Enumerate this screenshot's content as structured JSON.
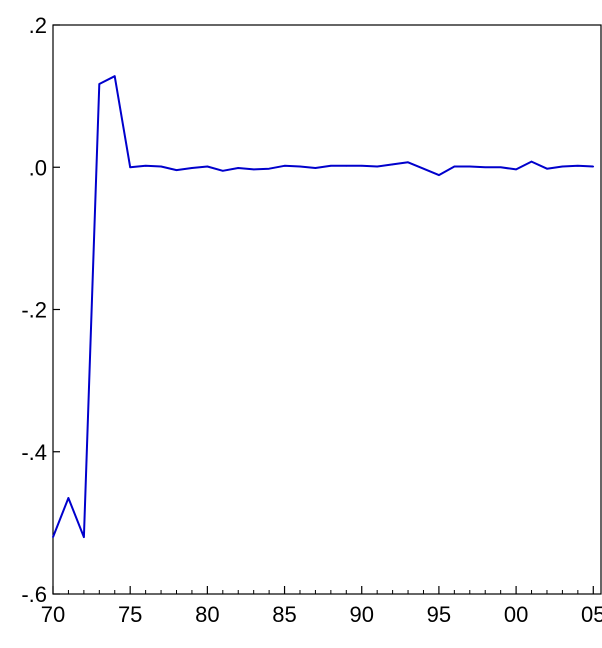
{
  "chart_data": {
    "type": "line",
    "title": "",
    "xlabel": "",
    "ylabel": "",
    "grid": false,
    "xlim": [
      1970,
      2005.5
    ],
    "ylim": [
      -0.6,
      0.2
    ],
    "x_ticks": [
      {
        "value": 1970,
        "label": "70"
      },
      {
        "value": 1975,
        "label": "75"
      },
      {
        "value": 1980,
        "label": "80"
      },
      {
        "value": 1985,
        "label": "85"
      },
      {
        "value": 1990,
        "label": "90"
      },
      {
        "value": 1995,
        "label": "95"
      },
      {
        "value": 2000,
        "label": "00"
      },
      {
        "value": 2005,
        "label": "05"
      }
    ],
    "y_ticks": [
      {
        "value": 0.2,
        "label": ".2"
      },
      {
        "value": 0.0,
        "label": ".0"
      },
      {
        "value": -0.2,
        "label": "-.2"
      },
      {
        "value": -0.4,
        "label": "-.4"
      },
      {
        "value": -0.6,
        "label": "-.6"
      }
    ],
    "series": [
      {
        "color": "#0000cc",
        "x": [
          1970,
          1971,
          1972,
          1973,
          1974,
          1975,
          1976,
          1977,
          1978,
          1979,
          1980,
          1981,
          1982,
          1983,
          1984,
          1985,
          1986,
          1987,
          1988,
          1989,
          1990,
          1991,
          1992,
          1993,
          1994,
          1995,
          1996,
          1997,
          1998,
          1999,
          2000,
          2001,
          2002,
          2003,
          2004,
          2005
        ],
        "y": [
          -0.52,
          -0.465,
          -0.52,
          0.117,
          0.128,
          0.0,
          0.002,
          0.001,
          -0.004,
          -0.001,
          0.001,
          -0.005,
          -0.001,
          -0.003,
          -0.002,
          0.002,
          0.001,
          -0.001,
          0.002,
          0.002,
          0.002,
          0.001,
          0.004,
          0.007,
          -0.002,
          -0.011,
          0.001,
          0.001,
          0.0,
          0.0,
          -0.003,
          0.008,
          -0.002,
          0.001,
          0.002,
          0.001
        ]
      }
    ]
  }
}
